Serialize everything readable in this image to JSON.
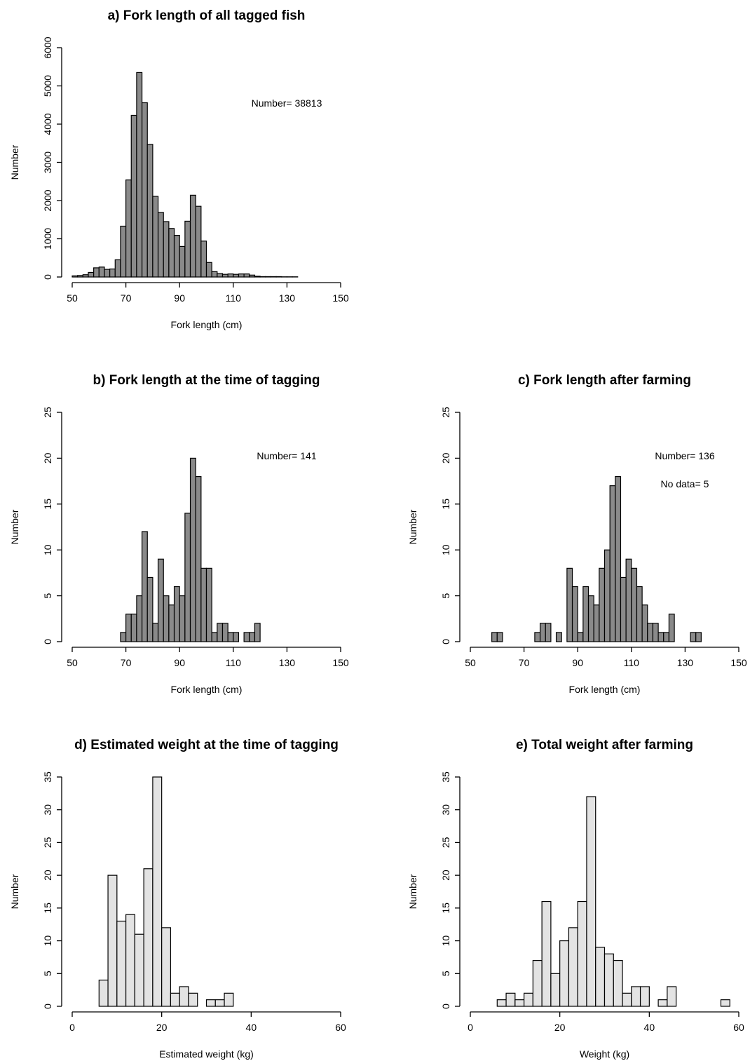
{
  "chart_data": [
    {
      "id": "a",
      "type": "bar",
      "title": "a) Fork length of all tagged fish",
      "xlabel": "Fork length (cm)",
      "ylabel": "Number",
      "xlim": [
        50,
        150
      ],
      "ylim": [
        0,
        6000
      ],
      "xticks": [
        50,
        70,
        90,
        110,
        130,
        150
      ],
      "yticks": [
        0,
        1000,
        2000,
        3000,
        4000,
        5000,
        6000
      ],
      "bin_width": 2,
      "bin_start": 50,
      "values": [
        30,
        40,
        60,
        120,
        240,
        260,
        200,
        210,
        450,
        1330,
        2540,
        4230,
        5350,
        4560,
        3470,
        2110,
        1690,
        1450,
        1270,
        1090,
        800,
        1460,
        2140,
        1850,
        940,
        380,
        140,
        90,
        70,
        80,
        70,
        80,
        80,
        50,
        20,
        10,
        10,
        10,
        10,
        5,
        5,
        5,
        0,
        0,
        0,
        0,
        0,
        0,
        0,
        0
      ],
      "fill": "#8a8a8a",
      "annotations": [
        "Number= 38813"
      ]
    },
    {
      "id": "b",
      "type": "bar",
      "title": "b) Fork length at the time of tagging",
      "xlabel": "Fork length (cm)",
      "ylabel": "Number",
      "xlim": [
        50,
        150
      ],
      "ylim": [
        0,
        25
      ],
      "xticks": [
        50,
        70,
        90,
        110,
        130,
        150
      ],
      "yticks": [
        0,
        5,
        10,
        15,
        20,
        25
      ],
      "bin_width": 2,
      "bin_start": 68,
      "values": [
        1,
        3,
        3,
        5,
        12,
        7,
        2,
        9,
        5,
        4,
        6,
        5,
        14,
        20,
        18,
        8,
        8,
        1,
        2,
        2,
        1,
        1,
        0,
        1,
        1,
        2
      ],
      "fill": "#8a8a8a",
      "annotations": [
        "Number= 141"
      ]
    },
    {
      "id": "c",
      "type": "bar",
      "title": "c) Fork length after farming",
      "xlabel": "Fork length (cm)",
      "ylabel": "Number",
      "xlim": [
        50,
        150
      ],
      "ylim": [
        0,
        25
      ],
      "xticks": [
        50,
        70,
        90,
        110,
        130,
        150
      ],
      "yticks": [
        0,
        5,
        10,
        15,
        20,
        25
      ],
      "bin_width": 2,
      "bin_start": 58,
      "values": [
        1,
        1,
        0,
        0,
        0,
        0,
        0,
        0,
        1,
        2,
        2,
        0,
        1,
        0,
        8,
        6,
        1,
        6,
        5,
        4,
        8,
        10,
        17,
        18,
        7,
        9,
        8,
        6,
        4,
        2,
        2,
        1,
        1,
        3,
        0,
        0,
        0,
        1,
        1
      ],
      "fill": "#8a8a8a",
      "annotations": [
        "Number= 136",
        "No data= 5"
      ]
    },
    {
      "id": "d",
      "type": "bar",
      "title": "d) Estimated weight at the time of tagging",
      "xlabel": "Estimated weight (kg)",
      "ylabel": "Number",
      "xlim": [
        0,
        60
      ],
      "ylim": [
        0,
        35
      ],
      "xticks": [
        0,
        20,
        40,
        60
      ],
      "yticks": [
        0,
        5,
        10,
        15,
        20,
        25,
        30,
        35
      ],
      "bin_width": 2,
      "bin_start": 6,
      "values": [
        4,
        20,
        13,
        14,
        11,
        21,
        35,
        12,
        2,
        3,
        2,
        0,
        1,
        1,
        2
      ],
      "fill": "#e3e3e3",
      "annotations": []
    },
    {
      "id": "e",
      "type": "bar",
      "title": "e) Total weight after farming",
      "xlabel": "Weight (kg)",
      "ylabel": "Number",
      "xlim": [
        0,
        60
      ],
      "ylim": [
        0,
        35
      ],
      "xticks": [
        0,
        20,
        40,
        60
      ],
      "yticks": [
        0,
        5,
        10,
        15,
        20,
        25,
        30,
        35
      ],
      "bin_width": 2,
      "bin_start": 6,
      "values": [
        1,
        2,
        1,
        2,
        7,
        16,
        5,
        10,
        12,
        16,
        32,
        9,
        8,
        7,
        2,
        3,
        3,
        0,
        1,
        3,
        0,
        0,
        0,
        0,
        0,
        1
      ],
      "fill": "#e3e3e3",
      "annotations": []
    }
  ]
}
